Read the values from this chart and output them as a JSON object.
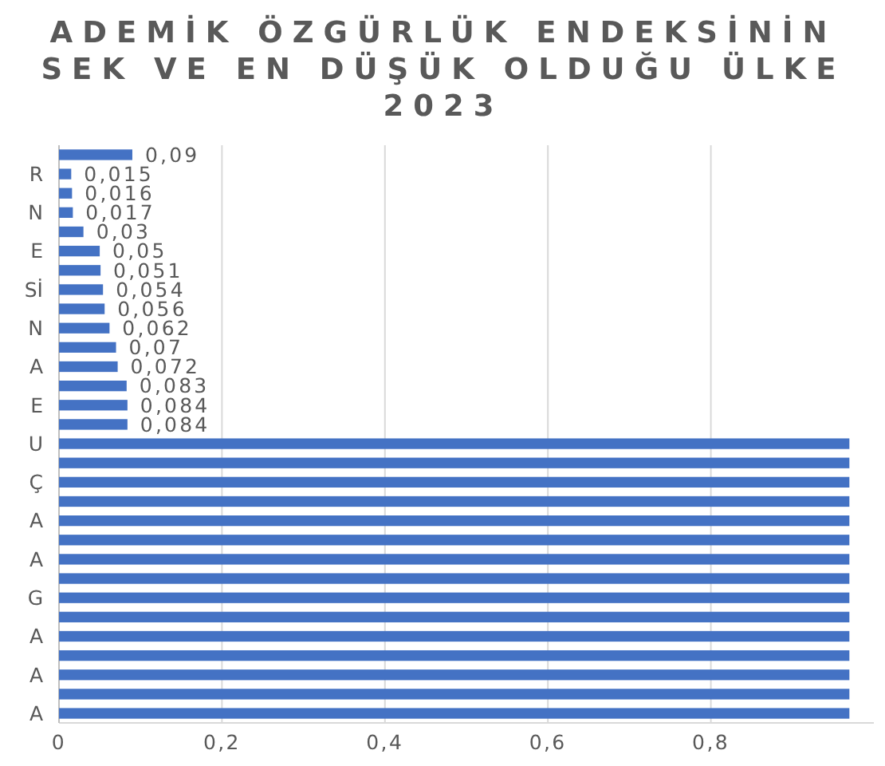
{
  "chart_data": {
    "type": "bar",
    "orientation": "horizontal",
    "title": "ADEMİK ÖZGÜRLÜK ENDEKSİNİN\nSEK VE EN DÜŞÜK OLDUĞU ÜLKE\n2023",
    "categories": [
      null,
      "R",
      null,
      "N",
      null,
      "E",
      null,
      "Sİ",
      null,
      "N",
      null,
      "A",
      null,
      "E",
      null,
      "U",
      null,
      "Ç",
      null,
      "A",
      null,
      "A",
      null,
      "G",
      null,
      "A",
      null,
      "A",
      null,
      "A"
    ],
    "values": [
      0.09,
      0.015,
      0.016,
      0.017,
      0.03,
      0.05,
      0.051,
      0.054,
      0.056,
      0.062,
      0.07,
      0.072,
      0.083,
      0.084,
      0.084,
      0.97,
      0.97,
      0.97,
      0.97,
      0.97,
      0.97,
      0.97,
      0.97,
      0.97,
      0.97,
      0.97,
      0.97,
      0.97,
      0.97,
      0.97
    ],
    "value_labels": [
      "0,09",
      "0,015",
      "0,016",
      "0,017",
      "0,03",
      "0,05",
      "0,051",
      "0,054",
      "0,056",
      "0,062",
      "0,07",
      "0,072",
      "0,083",
      "0,084",
      "0,084",
      null,
      null,
      null,
      null,
      null,
      null,
      null,
      null,
      null,
      null,
      null,
      null,
      null,
      null,
      null
    ],
    "color": "#4472c4",
    "xlim": [
      0,
      1
    ],
    "xticks": [
      0,
      {
        "value": 0.2,
        "label": "0,2"
      },
      {
        "value": 0.4,
        "label": "0,4"
      },
      {
        "value": 0.6,
        "label": "0,6"
      },
      {
        "value": 0.8,
        "label": "0,8"
      }
    ],
    "grid": "x"
  }
}
